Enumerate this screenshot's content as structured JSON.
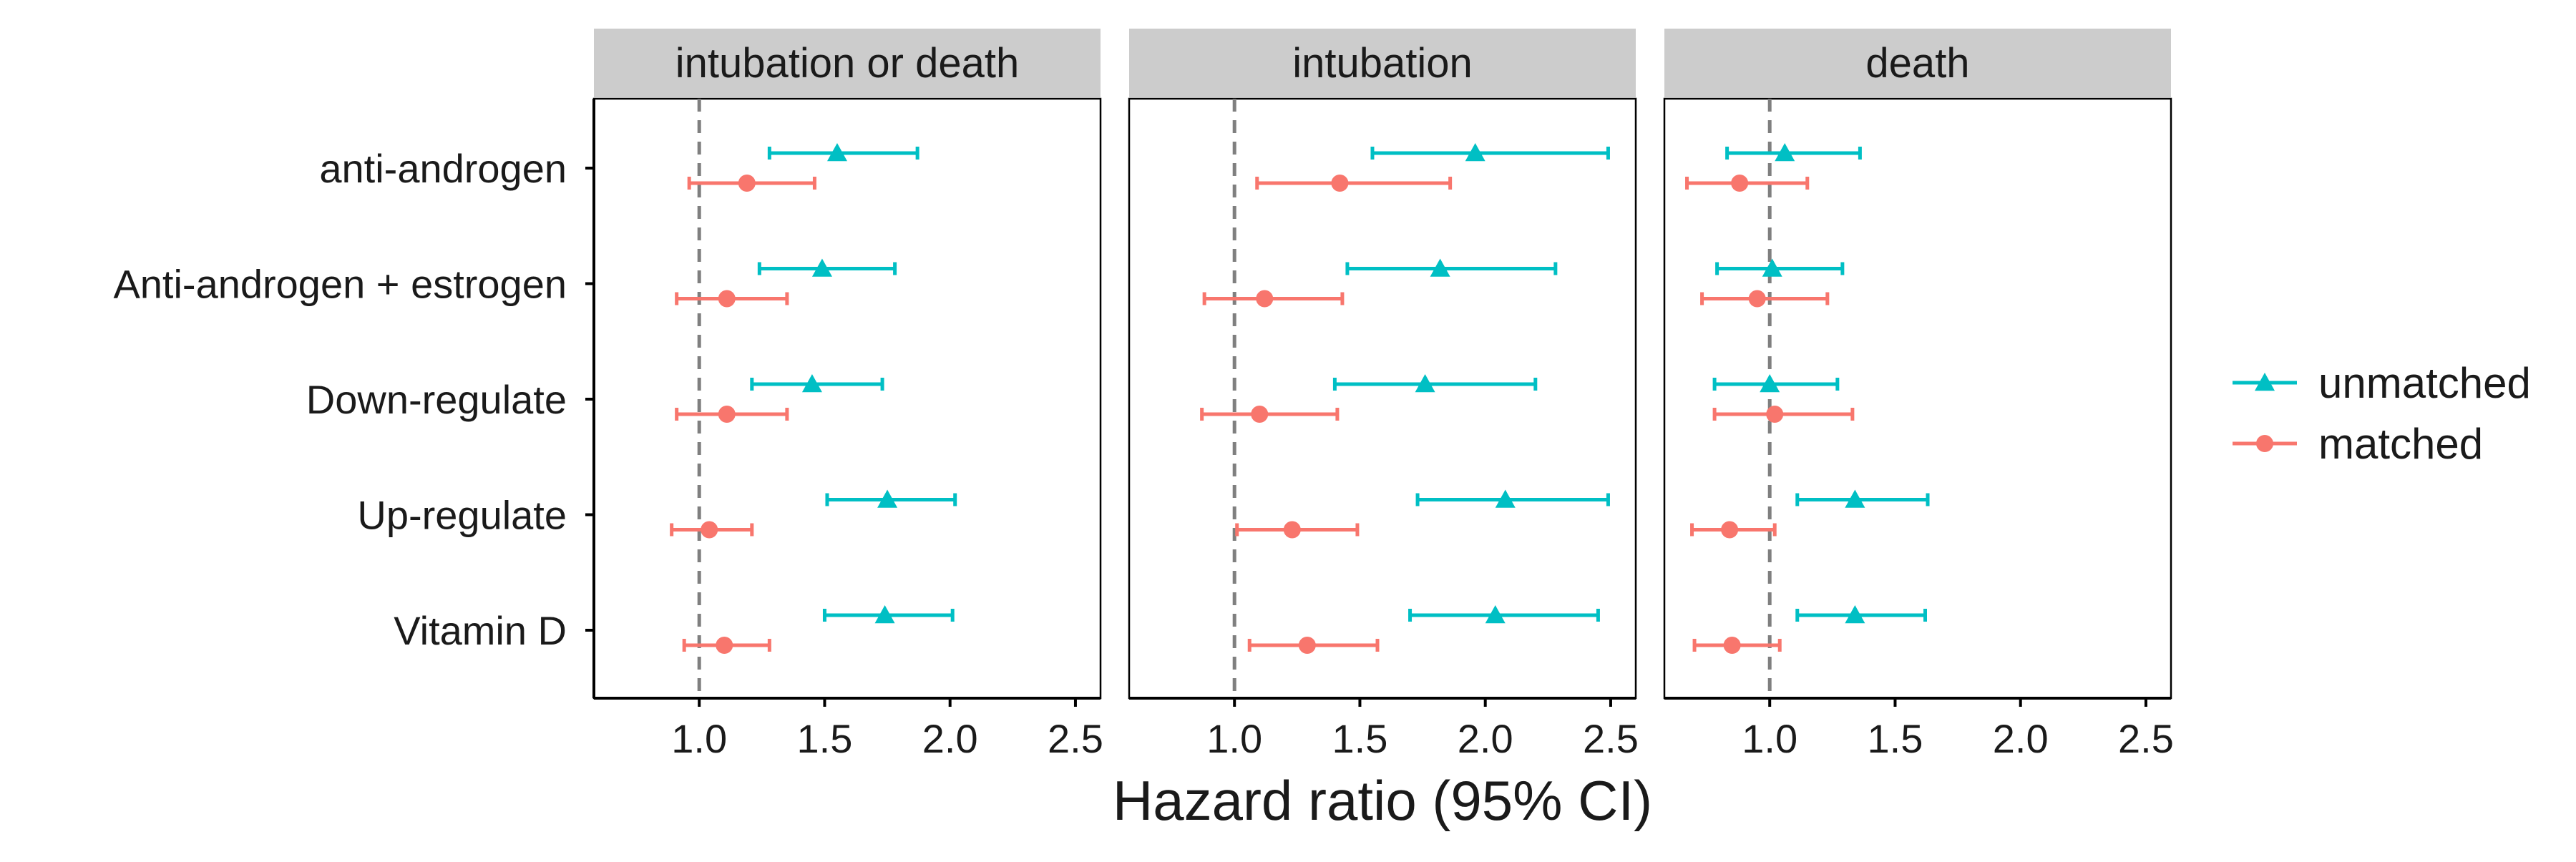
{
  "chart_data": {
    "type": "scatter",
    "subtype": "forest-plot-faceted",
    "xlabel": "Hazard ratio (95% CI)",
    "ylabel": "",
    "xlim": [
      0.58,
      2.6
    ],
    "x_ticks": [
      1.0,
      1.5,
      2.0,
      2.5
    ],
    "x_tick_labels": [
      "1.0",
      "1.5",
      "2.0",
      "2.5"
    ],
    "reference_line": 1.0,
    "categories": [
      "anti-androgen",
      "Anti-androgen + estrogen",
      "Down-regulate",
      "Up-regulate",
      "Vitamin D"
    ],
    "legend": {
      "position": "right",
      "entries": [
        {
          "label": "unmatched",
          "color": "#00BFC4",
          "marker": "triangle"
        },
        {
          "label": "matched",
          "color": "#F8766D",
          "marker": "circle"
        }
      ]
    },
    "panels": [
      {
        "title": "intubation or death",
        "series": [
          {
            "name": "unmatched",
            "estimates": [
              1.55,
              1.49,
              1.45,
              1.75,
              1.74
            ],
            "lower": [
              1.28,
              1.24,
              1.21,
              1.51,
              1.5
            ],
            "upper": [
              1.87,
              1.78,
              1.73,
              2.02,
              2.01
            ]
          },
          {
            "name": "matched",
            "estimates": [
              1.19,
              1.11,
              1.11,
              1.04,
              1.1
            ],
            "lower": [
              0.96,
              0.91,
              0.91,
              0.89,
              0.94
            ],
            "upper": [
              1.46,
              1.35,
              1.35,
              1.21,
              1.28
            ]
          }
        ]
      },
      {
        "title": "intubation",
        "series": [
          {
            "name": "unmatched",
            "estimates": [
              1.96,
              1.82,
              1.76,
              2.08,
              2.04
            ],
            "lower": [
              1.55,
              1.45,
              1.4,
              1.73,
              1.7
            ],
            "upper": [
              2.49,
              2.28,
              2.2,
              2.49,
              2.45
            ]
          },
          {
            "name": "matched",
            "estimates": [
              1.42,
              1.12,
              1.1,
              1.23,
              1.29
            ],
            "lower": [
              1.09,
              0.88,
              0.87,
              1.01,
              1.06
            ],
            "upper": [
              1.86,
              1.43,
              1.41,
              1.49,
              1.57
            ]
          }
        ]
      },
      {
        "title": "death",
        "series": [
          {
            "name": "unmatched",
            "estimates": [
              1.06,
              1.01,
              1.0,
              1.34,
              1.34
            ],
            "lower": [
              0.83,
              0.79,
              0.78,
              1.11,
              1.11
            ],
            "upper": [
              1.36,
              1.29,
              1.27,
              1.63,
              1.62
            ]
          },
          {
            "name": "matched",
            "estimates": [
              0.88,
              0.95,
              1.02,
              0.84,
              0.85
            ],
            "lower": [
              0.67,
              0.73,
              0.78,
              0.69,
              0.7
            ],
            "upper": [
              1.15,
              1.23,
              1.33,
              1.02,
              1.04
            ]
          }
        ]
      }
    ]
  }
}
